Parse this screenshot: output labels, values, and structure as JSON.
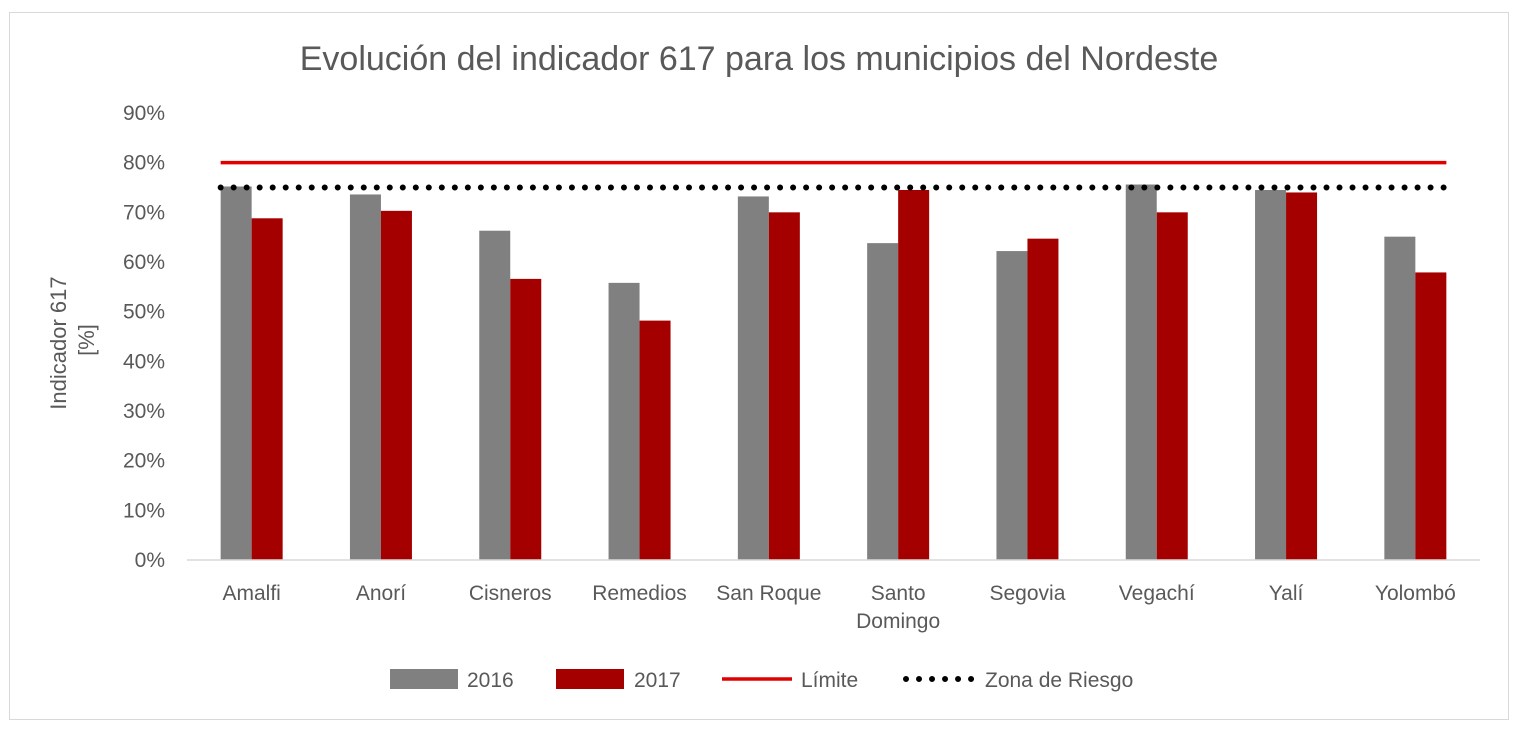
{
  "chart_data": {
    "type": "bar",
    "title": "Evolución del indicador 617 para los municipios del Nordeste",
    "ylabel_lines": [
      "Indicador 617",
      "[%]"
    ],
    "xlabel": "",
    "categories": [
      [
        "Amalfi"
      ],
      [
        "Anorí"
      ],
      [
        "Cisneros"
      ],
      [
        "Remedios"
      ],
      [
        "San Roque"
      ],
      [
        "Santo",
        "Domingo"
      ],
      [
        "Segovia"
      ],
      [
        "Vegachí"
      ],
      [
        "Yalí"
      ],
      [
        "Yolombó"
      ]
    ],
    "series": [
      {
        "name": "2016",
        "color": "#808080",
        "values": [
          75.2,
          73.6,
          66.3,
          55.8,
          73.2,
          63.8,
          62.2,
          75.6,
          74.5,
          65.1
        ]
      },
      {
        "name": "2017",
        "color": "#a50000",
        "values": [
          68.8,
          70.3,
          56.6,
          48.2,
          70.0,
          74.5,
          64.7,
          70.0,
          74.0,
          57.9
        ]
      }
    ],
    "reference_lines": [
      {
        "name": "Límite",
        "value": 80,
        "color": "#e00000",
        "style": "solid"
      },
      {
        "name": "Zona de Riesgo",
        "value": 75,
        "color": "#000000",
        "style": "dotted"
      }
    ],
    "ylim": [
      0,
      90
    ],
    "yticks": [
      0,
      10,
      20,
      30,
      40,
      50,
      60,
      70,
      80,
      90
    ],
    "ytick_format": "{v}%",
    "grid": false,
    "legend_position": "bottom"
  }
}
